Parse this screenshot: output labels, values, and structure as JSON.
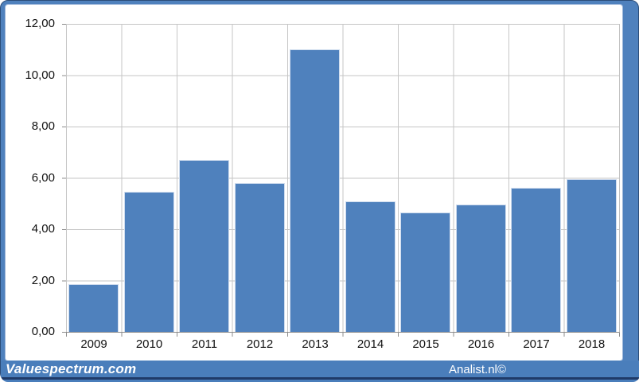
{
  "chart_data": {
    "type": "bar",
    "title": "",
    "xlabel": "",
    "ylabel": "",
    "categories": [
      "2009",
      "2010",
      "2011",
      "2012",
      "2013",
      "2014",
      "2015",
      "2016",
      "2017",
      "2018"
    ],
    "values": [
      1.85,
      5.45,
      6.7,
      5.8,
      11.0,
      5.1,
      4.65,
      4.95,
      5.6,
      5.95
    ],
    "ylim": [
      0,
      12
    ],
    "y_tick_step": 2,
    "y_tick_labels_ascending": [
      "0,00",
      "2,00",
      "4,00",
      "6,00",
      "8,00",
      "10,00",
      "12,00"
    ],
    "decimal_style": "comma",
    "grid": true,
    "legend_position": "none",
    "bar_color": "#4f81bd",
    "bar_border_color": "#cfdcee",
    "gridline_color": "#c6c6c6",
    "axis_line_color": "#8c8c8c"
  },
  "footer": {
    "brand_left": "Valuespectrum.com",
    "credit_right": "Analist.nl©",
    "band_color": "#4a7ebb",
    "divider_color": "#1f3a68",
    "text_color": "#ffffff"
  },
  "frame": {
    "border_color": "#4f81bd",
    "outline_color": "#2c4d79",
    "background_color": "#ffffff"
  }
}
